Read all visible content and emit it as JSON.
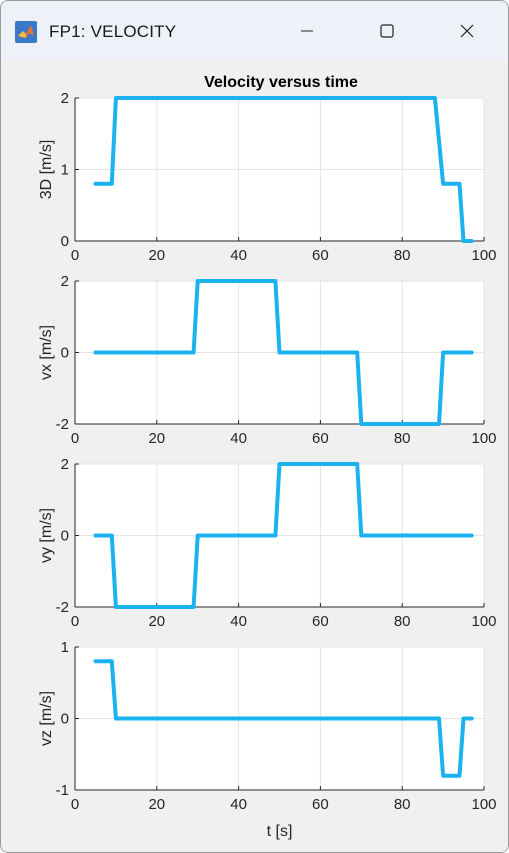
{
  "window": {
    "title": "FP1: VELOCITY",
    "icon": "matlab-logo-icon",
    "buttons": [
      "minimize-icon",
      "maximize-icon",
      "close-icon"
    ]
  },
  "chart_data": [
    {
      "type": "line",
      "title": "Velocity versus time",
      "xlabel": "",
      "ylabel": "3D [m/s]",
      "xlim": [
        0,
        100
      ],
      "ylim": [
        0,
        2
      ],
      "xticks": [
        "0",
        "20",
        "40",
        "60",
        "80",
        "100"
      ],
      "yticks": [
        "0",
        "1",
        "2"
      ],
      "ytick_values": [
        0,
        1,
        2
      ],
      "grid": true,
      "color": "#1ab3f0",
      "series": [
        {
          "x": [
            5,
            9,
            10,
            88,
            90,
            94,
            95,
            97
          ],
          "y": [
            0.8,
            0.8,
            2,
            2,
            0.8,
            0.8,
            0,
            0
          ]
        }
      ]
    },
    {
      "type": "line",
      "title": "",
      "xlabel": "",
      "ylabel": "vx [m/s]",
      "xlim": [
        0,
        100
      ],
      "ylim": [
        -2,
        2
      ],
      "xticks": [
        "0",
        "20",
        "40",
        "60",
        "80",
        "100"
      ],
      "yticks": [
        "-2",
        "0",
        "2"
      ],
      "ytick_values": [
        -2,
        0,
        2
      ],
      "grid": true,
      "color": "#1ab3f0",
      "series": [
        {
          "x": [
            5,
            29,
            30,
            49,
            50,
            69,
            70,
            89,
            90,
            97
          ],
          "y": [
            0,
            0,
            2,
            2,
            0,
            0,
            -2,
            -2,
            0,
            0
          ]
        }
      ]
    },
    {
      "type": "line",
      "title": "",
      "xlabel": "",
      "ylabel": "vy [m/s]",
      "xlim": [
        0,
        100
      ],
      "ylim": [
        -2,
        2
      ],
      "xticks": [
        "0",
        "20",
        "40",
        "60",
        "80",
        "100"
      ],
      "yticks": [
        "-2",
        "0",
        "2"
      ],
      "ytick_values": [
        -2,
        0,
        2
      ],
      "grid": true,
      "color": "#1ab3f0",
      "series": [
        {
          "x": [
            5,
            9,
            10,
            29,
            30,
            49,
            50,
            69,
            70,
            97
          ],
          "y": [
            0,
            0,
            -2,
            -2,
            0,
            0,
            2,
            2,
            0,
            0
          ]
        }
      ]
    },
    {
      "type": "line",
      "title": "",
      "xlabel": "t [s]",
      "ylabel": "vz [m/s]",
      "xlim": [
        0,
        100
      ],
      "ylim": [
        -1,
        1
      ],
      "xticks": [
        "0",
        "20",
        "40",
        "60",
        "80",
        "100"
      ],
      "yticks": [
        "-1",
        "0",
        "1"
      ],
      "ytick_values": [
        -1,
        0,
        1
      ],
      "grid": true,
      "color": "#1ab3f0",
      "series": [
        {
          "x": [
            5,
            9,
            10,
            89,
            90,
            94,
            95,
            97
          ],
          "y": [
            0.8,
            0.8,
            0,
            0,
            -0.8,
            -0.8,
            0,
            0
          ]
        }
      ]
    }
  ]
}
